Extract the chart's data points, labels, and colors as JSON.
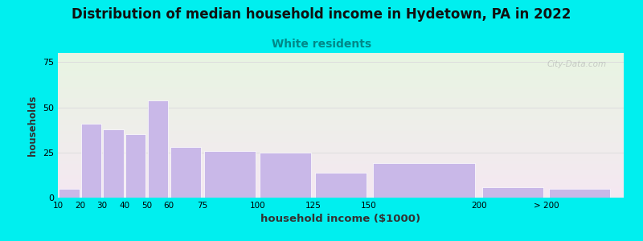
{
  "title": "Distribution of median household income in Hydetown, PA in 2022",
  "subtitle": "White residents",
  "xlabel": "household income ($1000)",
  "ylabel": "households",
  "title_fontsize": 12,
  "subtitle_fontsize": 10,
  "xlabel_fontsize": 9.5,
  "ylabel_fontsize": 8.5,
  "categories": [
    "10",
    "20",
    "30",
    "40",
    "50",
    "60",
    "75",
    "100",
    "125",
    "150",
    "200",
    "> 200"
  ],
  "bar_lefts": [
    10,
    20,
    30,
    40,
    50,
    60,
    75,
    100,
    125,
    150,
    200,
    230
  ],
  "bar_widths": [
    10,
    10,
    10,
    10,
    10,
    15,
    25,
    25,
    25,
    50,
    30,
    30
  ],
  "values": [
    5,
    41,
    38,
    35,
    54,
    28,
    26,
    25,
    14,
    19,
    6,
    5
  ],
  "bar_color": "#c9b8e8",
  "bar_edge_color": "#ffffff",
  "ylim": [
    0,
    80
  ],
  "xlim": [
    10,
    265
  ],
  "yticks": [
    0,
    25,
    50,
    75
  ],
  "xtick_positions": [
    10,
    20,
    30,
    40,
    50,
    60,
    75,
    100,
    125,
    150,
    200,
    230
  ],
  "xtick_labels": [
    "10",
    "20",
    "30",
    "40",
    "50",
    "60",
    "75",
    "100",
    "125",
    "150",
    "200",
    "> 200"
  ],
  "bg_top_color": "#e8f5e2",
  "bg_bottom_color": "#f5e8f2",
  "outer_background": "#00efef",
  "watermark": "City-Data.com",
  "title_color": "#111111",
  "subtitle_color": "#008888",
  "axis_label_color": "#333333",
  "grid_color": "#dddddd"
}
